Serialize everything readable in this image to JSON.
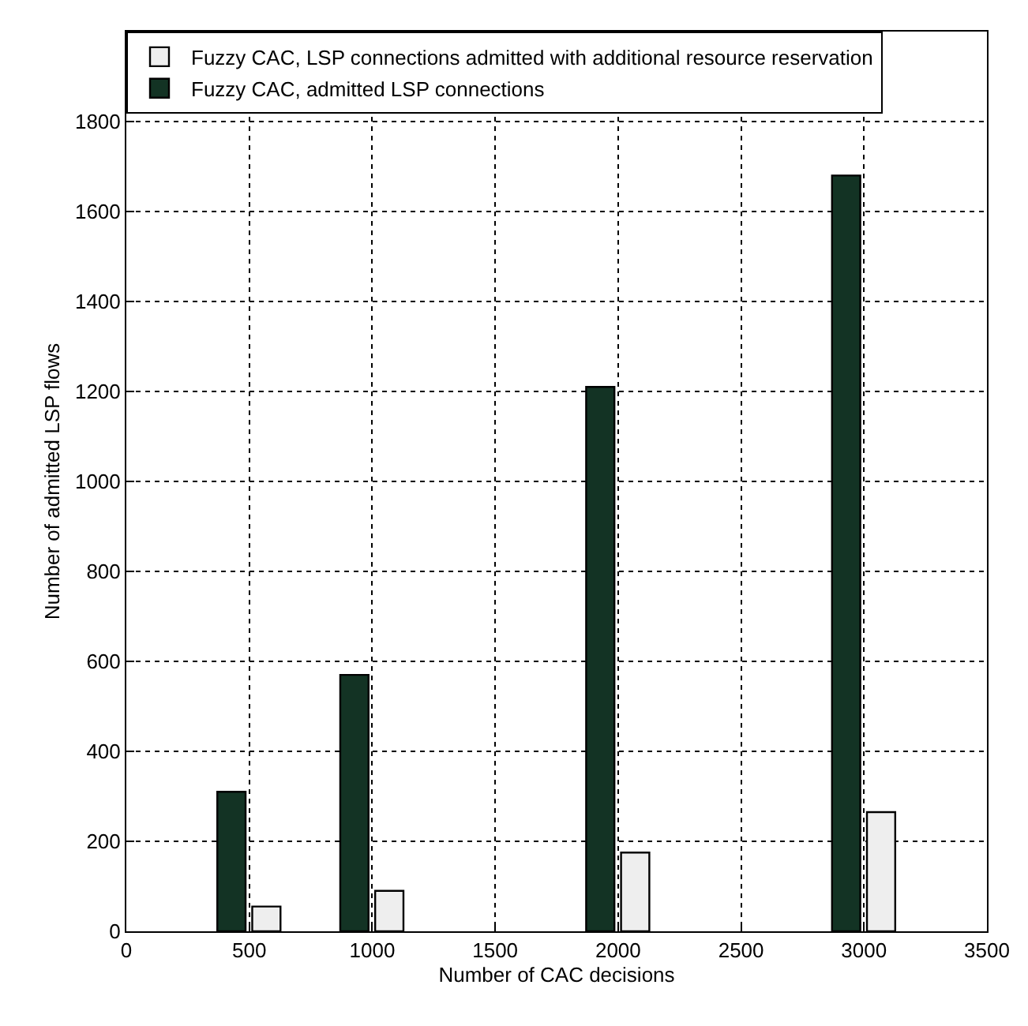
{
  "chart_data": {
    "type": "bar",
    "xlabel": "Number of CAC decisions",
    "ylabel": "Number of admitted LSP flows",
    "x": [
      500,
      1000,
      2000,
      3000
    ],
    "series": [
      {
        "name": "Fuzzy CAC, LSP connections admitted with additional resource reservation",
        "color": "#eeeeee",
        "values": [
          55,
          90,
          175,
          265
        ]
      },
      {
        "name": "Fuzzy CAC, admitted LSP connections",
        "color": "#133324",
        "values": [
          310,
          570,
          1210,
          1680
        ]
      }
    ],
    "xlim": [
      0,
      3500
    ],
    "xticks": [
      0,
      500,
      1000,
      1500,
      2000,
      2500,
      3000,
      3500
    ],
    "ylim": [
      0,
      2000
    ],
    "yticks": [
      0,
      200,
      400,
      600,
      800,
      1000,
      1200,
      1400,
      1600,
      1800
    ],
    "grid": true,
    "legend": "top"
  }
}
